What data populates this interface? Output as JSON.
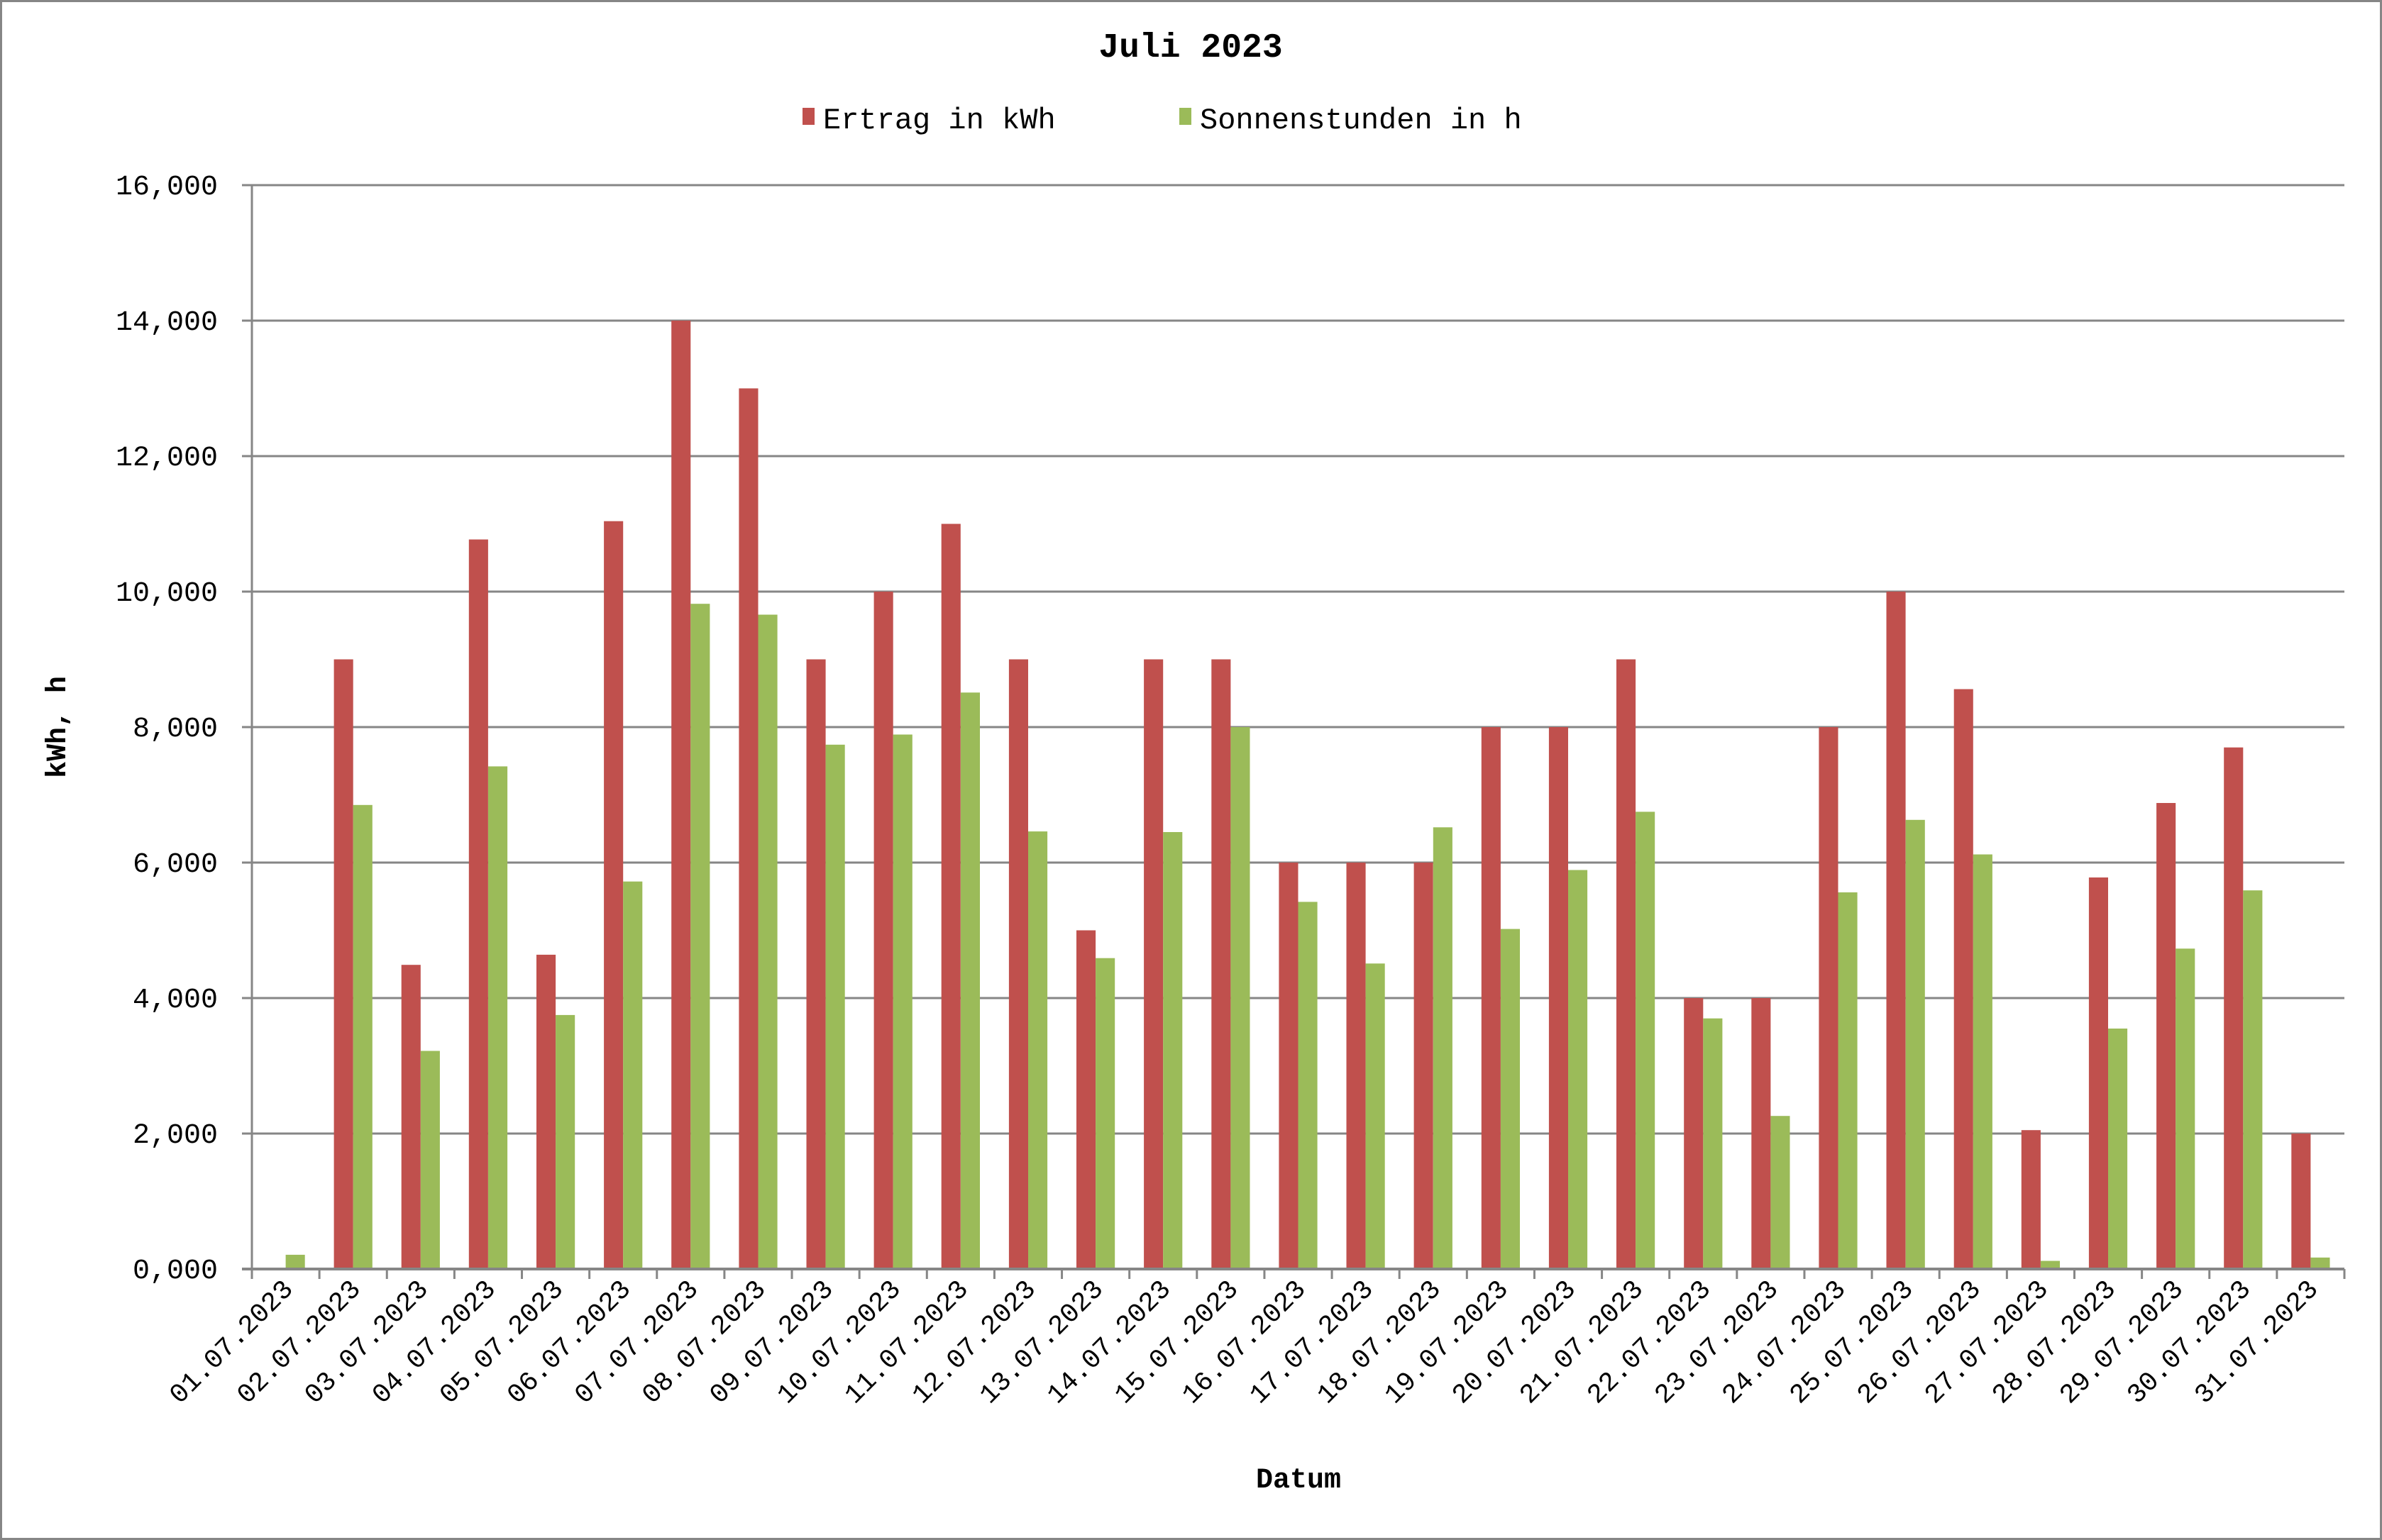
{
  "chart_data": {
    "type": "bar",
    "title": "Juli 2023",
    "xlabel": "Datum",
    "ylabel": "kWh, h",
    "ylim": [
      0,
      16
    ],
    "yticks": [
      0,
      2,
      4,
      6,
      8,
      10,
      12,
      14,
      16
    ],
    "ytick_labels": [
      "0,000",
      "2,000",
      "4,000",
      "6,000",
      "8,000",
      "10,000",
      "12,000",
      "14,000",
      "16,000"
    ],
    "grid": true,
    "legend_position": "top",
    "categories": [
      "01.07.2023",
      "02.07.2023",
      "03.07.2023",
      "04.07.2023",
      "05.07.2023",
      "06.07.2023",
      "07.07.2023",
      "08.07.2023",
      "09.07.2023",
      "10.07.2023",
      "11.07.2023",
      "12.07.2023",
      "13.07.2023",
      "14.07.2023",
      "15.07.2023",
      "16.07.2023",
      "17.07.2023",
      "18.07.2023",
      "19.07.2023",
      "20.07.2023",
      "21.07.2023",
      "22.07.2023",
      "23.07.2023",
      "24.07.2023",
      "25.07.2023",
      "26.07.2023",
      "27.07.2023",
      "28.07.2023",
      "29.07.2023",
      "30.07.2023",
      "31.07.2023"
    ],
    "series": [
      {
        "name": "Ertrag in kWh",
        "color": "#C0504D",
        "values": [
          0,
          9.0,
          4.49,
          10.77,
          4.64,
          11.04,
          14.0,
          13.0,
          9.0,
          10.0,
          11.0,
          9.0,
          5.0,
          9.0,
          9.0,
          6.0,
          6.0,
          6.0,
          8.0,
          8.0,
          9.0,
          4.0,
          4.0,
          8.0,
          10.0,
          8.56,
          2.05,
          5.78,
          6.88,
          7.7,
          2.0
        ]
      },
      {
        "name": "Sonnenstunden in h",
        "color": "#9BBB59",
        "values": [
          0.21,
          6.85,
          3.22,
          7.42,
          3.75,
          5.72,
          9.82,
          9.66,
          7.74,
          7.89,
          8.51,
          6.46,
          4.59,
          6.45,
          8.0,
          5.42,
          4.51,
          6.52,
          5.02,
          5.89,
          6.75,
          3.7,
          2.26,
          5.56,
          6.63,
          6.12,
          0.12,
          3.55,
          4.73,
          5.59,
          0.17
        ]
      }
    ]
  },
  "colors": {
    "grid": "#868686",
    "frame": "#868686",
    "text": "#000000"
  }
}
